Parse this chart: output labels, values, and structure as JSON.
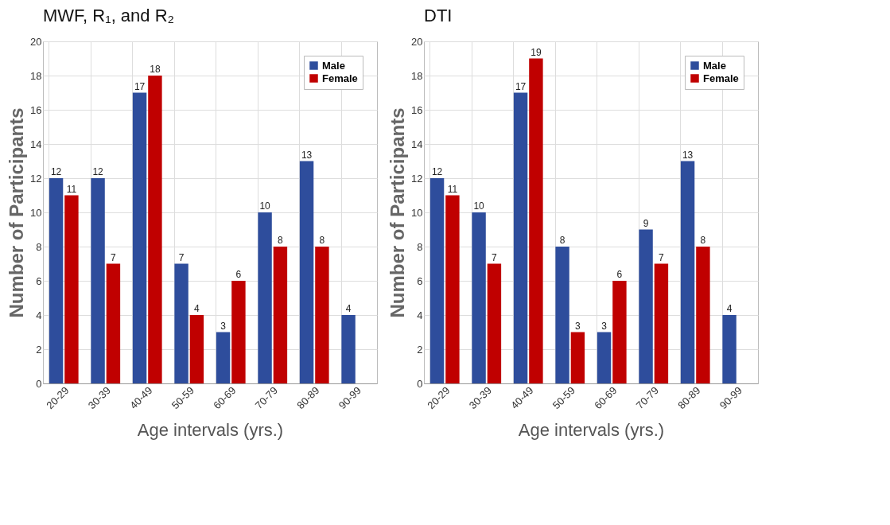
{
  "chart_data": [
    {
      "type": "bar",
      "title": "MWF, R₁, and R₂",
      "xlabel": "Age intervals (yrs.)",
      "ylabel": "Number of Participants",
      "categories": [
        "20-29",
        "30-39",
        "40-49",
        "50-59",
        "60-69",
        "70-79",
        "80-89",
        "90-99"
      ],
      "series": [
        {
          "name": "Male",
          "color": "#2e4d9c",
          "values": [
            12,
            12,
            17,
            7,
            3,
            10,
            13,
            4
          ]
        },
        {
          "name": "Female",
          "color": "#c00000",
          "values": [
            11,
            7,
            18,
            4,
            6,
            8,
            8,
            null
          ]
        }
      ],
      "ylim": [
        0,
        20
      ],
      "yticks": [
        0,
        2,
        4,
        6,
        8,
        10,
        12,
        14,
        16,
        18,
        20
      ],
      "grid": true,
      "legend": "top right",
      "data_labels": true
    },
    {
      "type": "bar",
      "title": "DTI",
      "xlabel": "Age intervals (yrs.)",
      "ylabel": "Number of Participants",
      "categories": [
        "20-29",
        "30-39",
        "40-49",
        "50-59",
        "60-69",
        "70-79",
        "80-89",
        "90-99"
      ],
      "series": [
        {
          "name": "Male",
          "color": "#2e4d9c",
          "values": [
            12,
            10,
            17,
            8,
            3,
            9,
            13,
            4
          ]
        },
        {
          "name": "Female",
          "color": "#c00000",
          "values": [
            11,
            7,
            19,
            3,
            6,
            7,
            8,
            null
          ]
        }
      ],
      "ylim": [
        0,
        20
      ],
      "yticks": [
        0,
        2,
        4,
        6,
        8,
        10,
        12,
        14,
        16,
        18,
        20
      ],
      "grid": true,
      "legend": "top right",
      "data_labels": true
    }
  ]
}
